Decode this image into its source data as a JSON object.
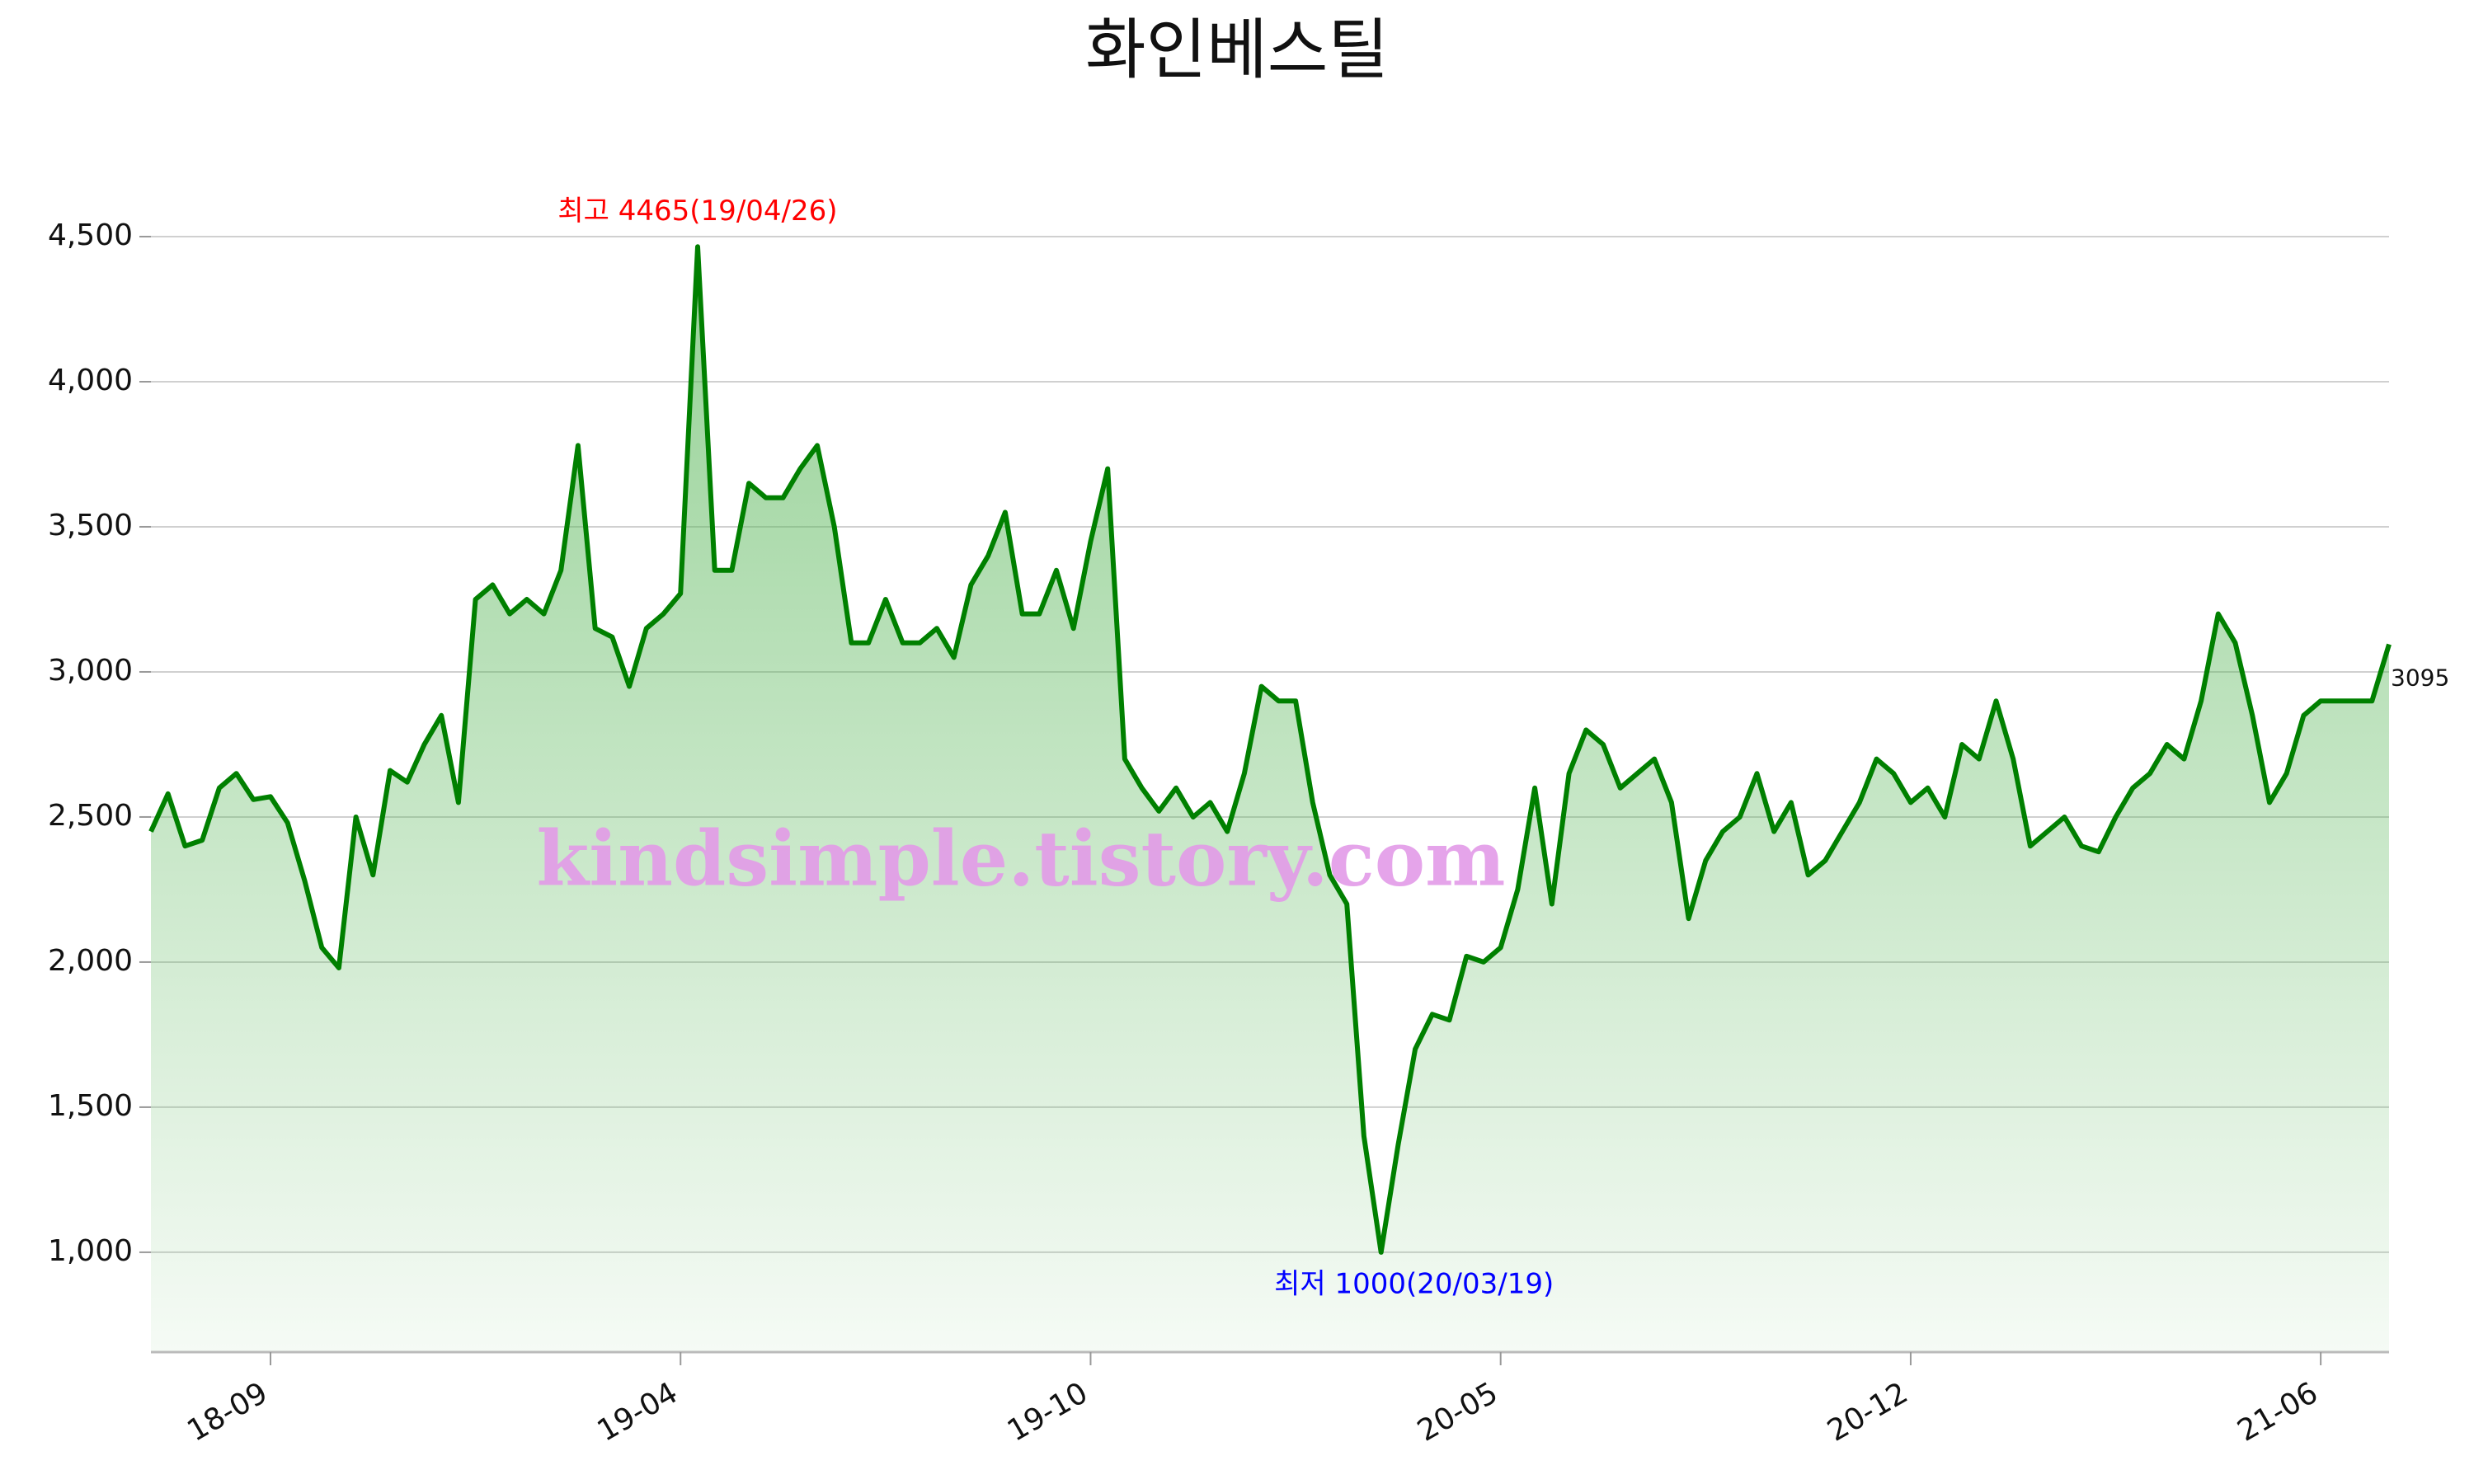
{
  "chart_data": {
    "type": "line",
    "title": "화인베스틸",
    "categories": [
      null,
      null,
      null,
      null,
      null,
      null,
      null,
      "18-09",
      null,
      null,
      null,
      null,
      null,
      null,
      null,
      null,
      null,
      null,
      null,
      null,
      null,
      null,
      null,
      null,
      null,
      null,
      null,
      null,
      null,
      null,
      null,
      "19-04",
      null,
      null,
      null,
      null,
      null,
      null,
      null,
      null,
      null,
      null,
      null,
      null,
      null,
      null,
      null,
      null,
      null,
      null,
      null,
      null,
      null,
      null,
      null,
      "19-10",
      null,
      null,
      null,
      null,
      null,
      null,
      null,
      null,
      null,
      null,
      null,
      null,
      null,
      null,
      null,
      null,
      null,
      null,
      null,
      null,
      null,
      null,
      null,
      "20-05",
      null,
      null,
      null,
      null,
      null,
      null,
      null,
      null,
      null,
      null,
      null,
      null,
      null,
      null,
      null,
      null,
      null,
      null,
      null,
      null,
      null,
      null,
      null,
      "20-12",
      null,
      null,
      null,
      null,
      null,
      null,
      null,
      null,
      null,
      null,
      null,
      null,
      null,
      null,
      null,
      null,
      null,
      null,
      null,
      null,
      null,
      null,
      null,
      "21-06",
      null,
      null,
      null,
      null
    ],
    "values": [
      2450,
      2580,
      2400,
      2420,
      2600,
      2650,
      2560,
      2570,
      2480,
      2280,
      2050,
      1980,
      2500,
      2300,
      2660,
      2620,
      2750,
      2850,
      2550,
      3250,
      3300,
      3200,
      3250,
      3200,
      3350,
      3780,
      3150,
      3120,
      2950,
      3150,
      3200,
      3270,
      4465,
      3350,
      3350,
      3650,
      3600,
      3600,
      3700,
      3780,
      3500,
      3100,
      3100,
      3250,
      3100,
      3100,
      3150,
      3050,
      3300,
      3400,
      3550,
      3200,
      3200,
      3350,
      3150,
      3450,
      3700,
      2700,
      2600,
      2520,
      2600,
      2500,
      2550,
      2450,
      2650,
      2950,
      2900,
      2900,
      2550,
      2300,
      2200,
      1400,
      1000,
      1370,
      1700,
      1820,
      1800,
      2020,
      2000,
      2050,
      2250,
      2600,
      2200,
      2650,
      2800,
      2750,
      2600,
      2650,
      2700,
      2550,
      2150,
      2350,
      2450,
      2500,
      2650,
      2450,
      2550,
      2300,
      2350,
      2450,
      2550,
      2700,
      2650,
      2550,
      2600,
      2500,
      2750,
      2700,
      2900,
      2700,
      2400,
      2450,
      2500,
      2400,
      2380,
      2500,
      2600,
      2650,
      2750,
      2700,
      2900,
      3200,
      3100,
      2850,
      2550,
      2650,
      2850,
      2900,
      2900,
      2900,
      2900,
      3095
    ],
    "color": "#008000",
    "ylim": [
      656,
      4500
    ],
    "yticks": [
      {
        "value": 1000,
        "label": "1,000"
      },
      {
        "value": 1500,
        "label": "1,500"
      },
      {
        "value": 2000,
        "label": "2,000"
      },
      {
        "value": 2500,
        "label": "2,500"
      },
      {
        "value": 3000,
        "label": "3,000"
      },
      {
        "value": 3500,
        "label": "3,500"
      },
      {
        "value": 4000,
        "label": "4,000"
      },
      {
        "value": 4500,
        "label": "4,500"
      }
    ],
    "grid": true,
    "annotations": [
      {
        "text": "최고 4465(19/04/26)",
        "color": "#ff0000"
      },
      {
        "text": "최저 1000(20/03/19)",
        "color": "#0000ff"
      }
    ],
    "watermark": "kindsimple.tistory.com"
  }
}
